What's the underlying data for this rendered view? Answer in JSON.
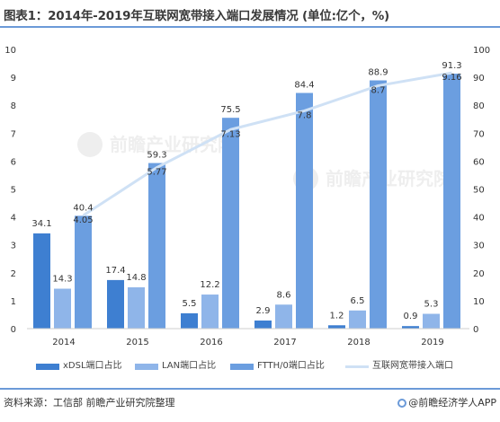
{
  "title": "图表1：2014年-2019年互联网宽带接入端口发展情况 (单位:亿个，%)",
  "source": "资料来源：工信部 前瞻产业研究院整理",
  "brand": "@前瞻经济学人APP",
  "colors": {
    "xdsl": "#3e7fd1",
    "lan": "#8fb5e9",
    "ftth": "#6b9ee0",
    "line": "#cfe1f5",
    "rule": "#6b9ad8"
  },
  "chart_data": {
    "type": "bar",
    "categories": [
      "2014",
      "2015",
      "2016",
      "2017",
      "2018",
      "2019"
    ],
    "series": [
      {
        "name": "xDSL端口占比",
        "axis": "right",
        "values": [
          34.1,
          17.4,
          5.5,
          2.9,
          1.2,
          0.9
        ]
      },
      {
        "name": "LAN端口占比",
        "axis": "right",
        "values": [
          14.3,
          14.8,
          12.2,
          8.6,
          6.5,
          5.3
        ]
      },
      {
        "name": "FTTH/0端口占比",
        "axis": "right",
        "values": [
          40.4,
          59.3,
          75.5,
          84.4,
          88.9,
          91.3
        ]
      },
      {
        "name": "互联网宽带接入端口",
        "type": "line",
        "axis": "left",
        "values": [
          4.05,
          5.77,
          7.13,
          7.8,
          8.7,
          9.16
        ]
      }
    ],
    "left_axis": {
      "ylim": [
        0,
        10
      ],
      "ticks": [
        "0",
        "1",
        "2",
        "3",
        "4",
        "5",
        "6",
        "7",
        "8",
        "9",
        "10"
      ]
    },
    "right_axis": {
      "ylim": [
        0,
        100
      ],
      "ticks": [
        "0",
        "10",
        "20",
        "30",
        "40",
        "50",
        "60",
        "70",
        "80",
        "90",
        "100"
      ]
    },
    "legend": "bottom",
    "grid": false
  }
}
